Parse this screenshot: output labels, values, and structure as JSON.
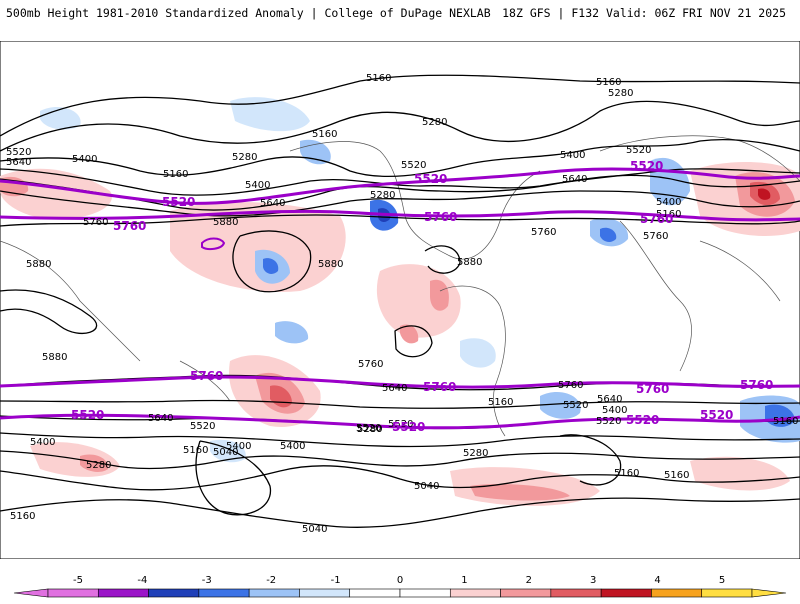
{
  "header": {
    "title_left": "500mb Height 1981-2010 Standardized Anomaly | College of DuPage NEXLAB",
    "title_right": "18Z GFS | F132 Valid: 06Z FRI NOV 21 2025"
  },
  "map": {
    "contour_labels_black": [
      "5160",
      "5160",
      "5280",
      "5280",
      "5280",
      "5160",
      "5520",
      "5640",
      "5400",
      "5160",
      "5280",
      "5400",
      "5640",
      "5520",
      "5400",
      "5640",
      "5520",
      "5400",
      "5160",
      "5880",
      "5760",
      "5880",
      "5880",
      "5880",
      "5760",
      "5760",
      "5880",
      "5760",
      "5640",
      "5520",
      "5400",
      "5280",
      "5160",
      "5040",
      "5040",
      "5160",
      "5280",
      "5400",
      "5520",
      "5640",
      "5760",
      "5640",
      "5400",
      "5520",
      "5280",
      "5160",
      "5160",
      "5160",
      "5040",
      "5520",
      "5400",
      "5280",
      "5160",
      "5520"
    ],
    "contour_labels_purple": [
      "5520",
      "5760",
      "5520",
      "5760",
      "5520",
      "5760",
      "5760",
      "5760",
      "5520",
      "5520",
      "5760",
      "5760",
      "5520",
      "5520"
    ]
  },
  "colorbar": {
    "tick_labels": [
      "-5",
      "-4",
      "-3",
      "-2",
      "-1",
      "0",
      "1",
      "2",
      "3",
      "4",
      "5"
    ],
    "colors": [
      "#e070e0",
      "#9b14c8",
      "#1f3fb8",
      "#3c73e6",
      "#9dc3f6",
      "#d2e6fb",
      "#ffffff",
      "#ffffff",
      "#fbd1d1",
      "#f2999c",
      "#e15c62",
      "#c01422",
      "#f7a21e",
      "#ffde42"
    ]
  }
}
